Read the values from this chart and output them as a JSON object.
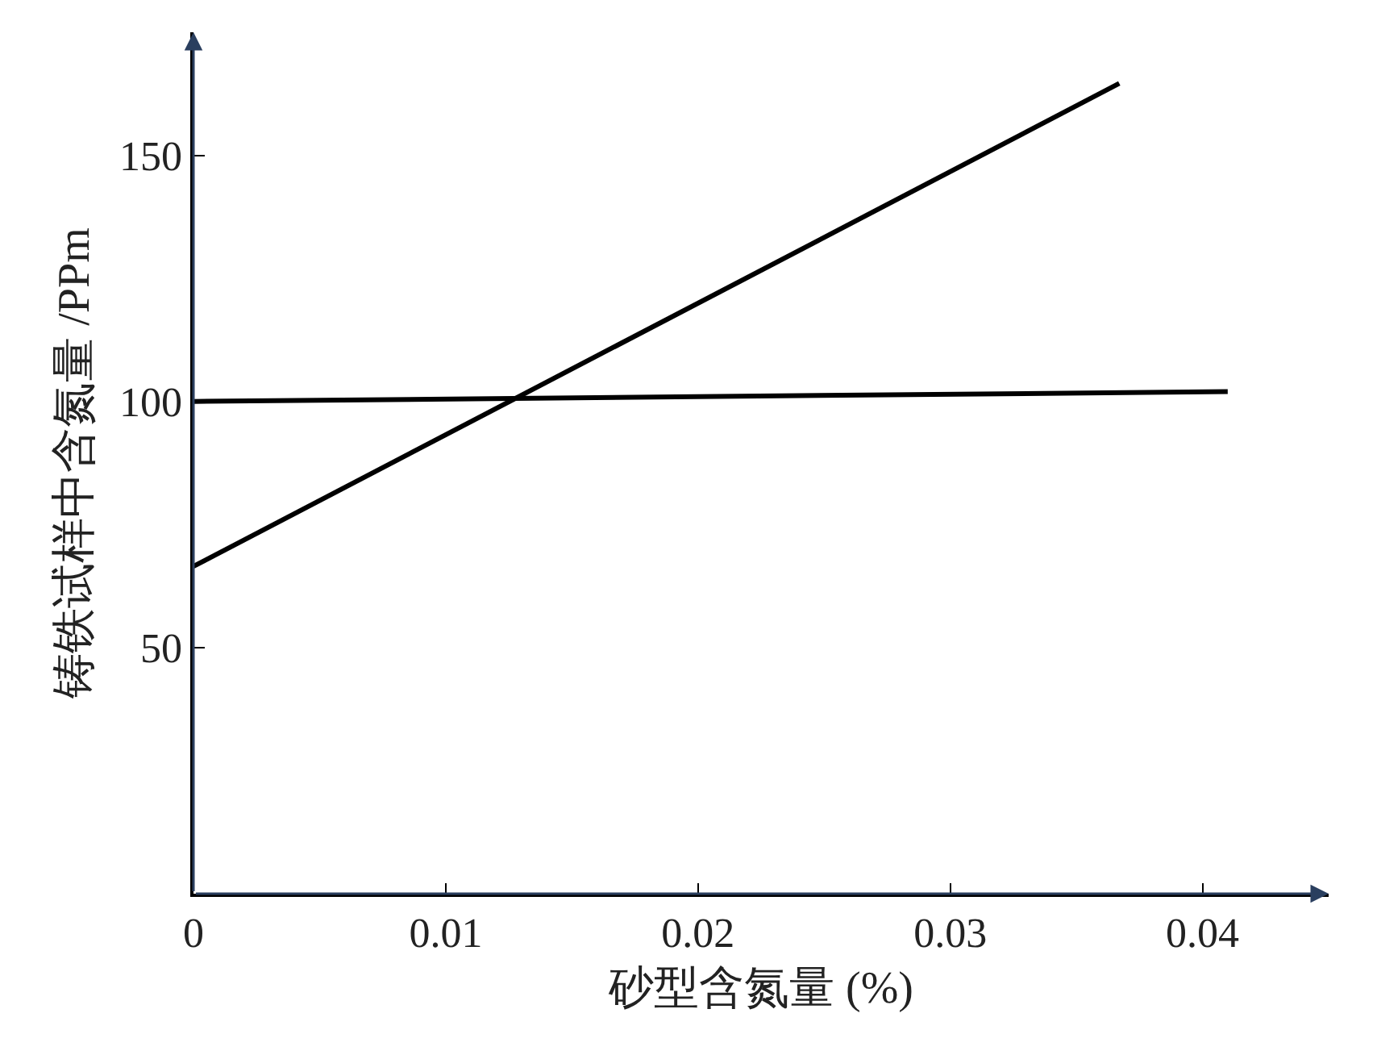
{
  "chart_data": {
    "type": "line",
    "xlabel": "砂型含氮量 (%)",
    "ylabel": "铸铁试样中含氮量 /PPm",
    "series": [
      {
        "color": "#000000",
        "x": [
          0,
          0.0367
        ],
        "values": [
          66.5,
          164.6
        ]
      },
      {
        "color": "#000000",
        "x": [
          0,
          0.041
        ],
        "values": [
          100,
          102
        ]
      }
    ],
    "xlim": [
      0,
      0.045
    ],
    "ylim": [
      0,
      175
    ],
    "xticks": [
      0,
      0.01,
      0.02,
      0.03,
      0.04
    ],
    "yticks": [
      50,
      100,
      150
    ],
    "marker": "none",
    "line_style": "solid"
  }
}
